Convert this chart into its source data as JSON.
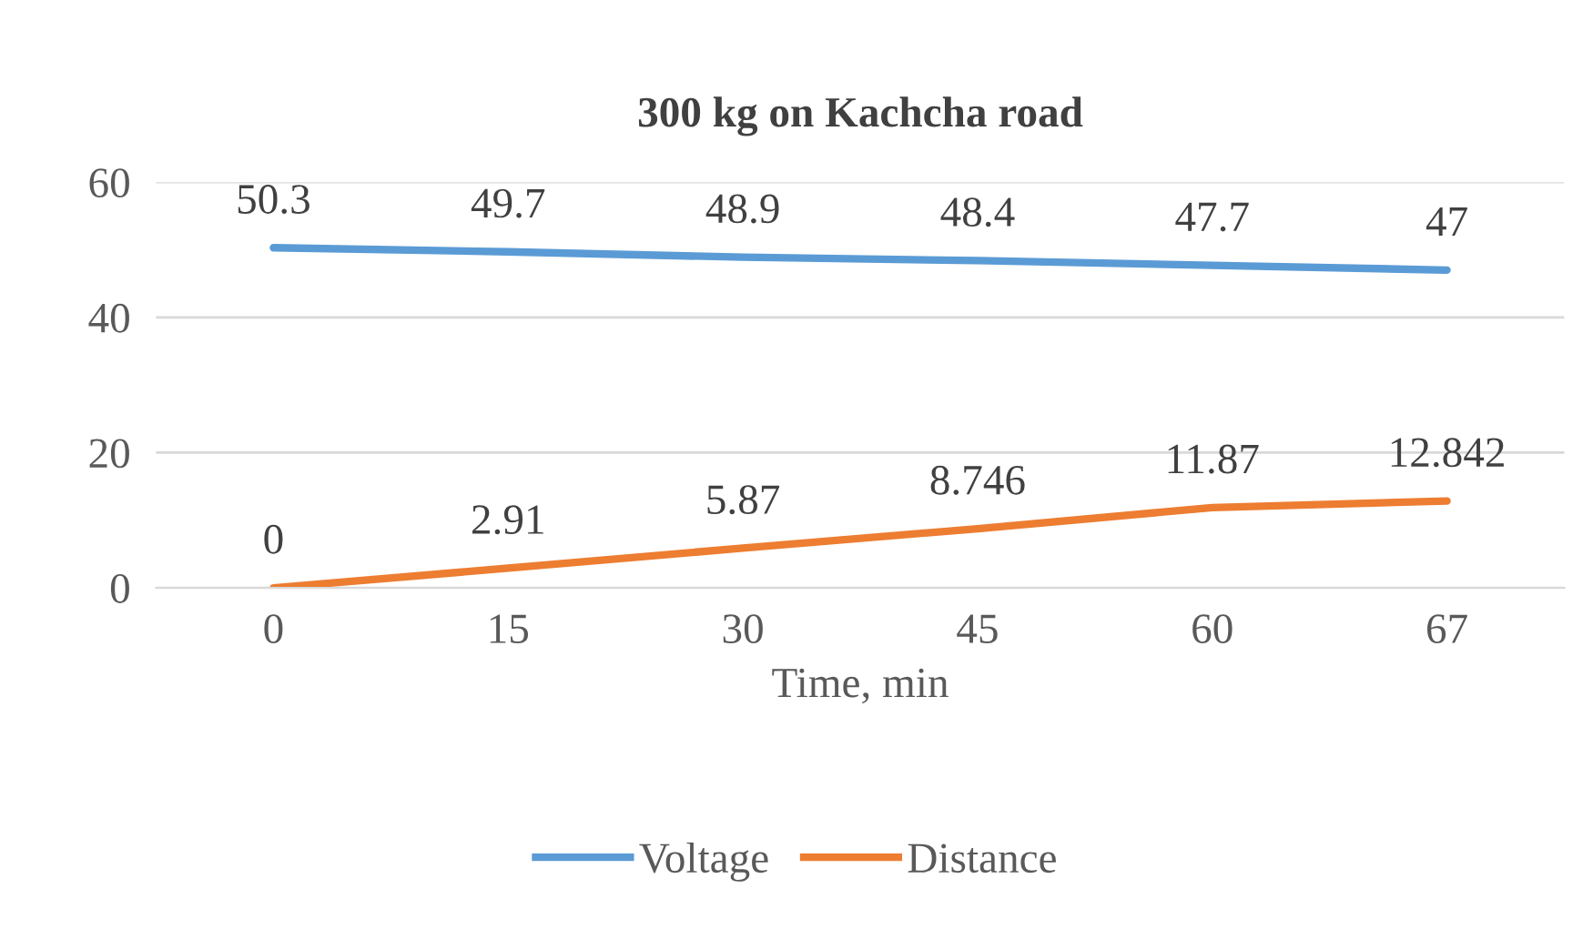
{
  "chart_data": {
    "type": "line",
    "title": "300 kg on Kachcha road",
    "xlabel": "Time, min",
    "categories": [
      "0",
      "15",
      "30",
      "45",
      "60",
      "67"
    ],
    "series": [
      {
        "name": "Voltage",
        "color": "#5b9bd5",
        "values": [
          50.3,
          49.7,
          48.9,
          48.4,
          47.7,
          47
        ]
      },
      {
        "name": "Distance",
        "color": "#ed7d31",
        "values": [
          0,
          2.91,
          5.87,
          8.746,
          11.87,
          12.842
        ]
      }
    ],
    "ylim": [
      0,
      60
    ],
    "yticks": [
      0,
      20,
      40,
      60
    ],
    "grid": "y",
    "legend": "bottom",
    "data_labels": true,
    "marker": "none",
    "line_style": "solid"
  }
}
